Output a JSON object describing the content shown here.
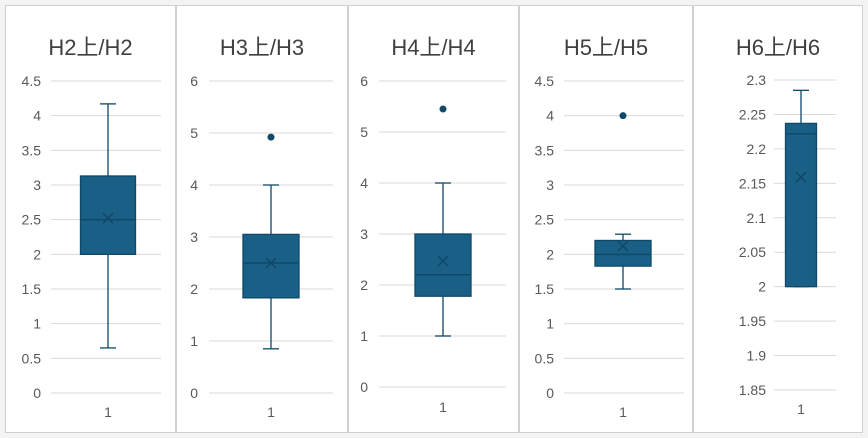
{
  "chart_data": [
    {
      "type": "boxplot",
      "title": "H2上/H2",
      "categories": [
        "1"
      ],
      "ylim": [
        0,
        4.5
      ],
      "yticks": [
        "0",
        "0.5",
        "1",
        "1.5",
        "2",
        "2.5",
        "3",
        "3.5",
        "4",
        "4.5"
      ],
      "box": {
        "min": 0.65,
        "q1": 2.0,
        "median": 2.5,
        "q3": 3.13,
        "max": 4.17,
        "mean": 2.52,
        "outliers": []
      },
      "grid": true
    },
    {
      "type": "boxplot",
      "title": "H3上/H3",
      "categories": [
        "1"
      ],
      "ylim": [
        0,
        6
      ],
      "yticks": [
        "0",
        "1",
        "2",
        "3",
        "4",
        "5",
        "6"
      ],
      "box": {
        "min": 0.85,
        "q1": 1.83,
        "median": 2.5,
        "q3": 3.05,
        "max": 4.0,
        "mean": 2.5,
        "outliers": [
          4.92
        ]
      },
      "grid": true
    },
    {
      "type": "boxplot",
      "title": "H4上/H4",
      "categories": [
        "1"
      ],
      "ylim": [
        0,
        6
      ],
      "yticks": [
        "0",
        "1",
        "2",
        "3",
        "4",
        "5",
        "6"
      ],
      "box": {
        "min": 1.0,
        "q1": 1.78,
        "median": 2.2,
        "q3": 3.0,
        "max": 4.0,
        "mean": 2.47,
        "outliers": [
          5.45
        ]
      },
      "grid": true
    },
    {
      "type": "boxplot",
      "title": "H5上/H5",
      "categories": [
        "1"
      ],
      "ylim": [
        0,
        4.5
      ],
      "yticks": [
        "0",
        "0.5",
        "1",
        "1.5",
        "2",
        "2.5",
        "3",
        "3.5",
        "4",
        "4.5"
      ],
      "box": {
        "min": 1.5,
        "q1": 1.83,
        "median": 2.0,
        "q3": 2.2,
        "max": 2.29,
        "mean": 2.12,
        "outliers": [
          4.0
        ]
      },
      "grid": true
    },
    {
      "type": "boxplot",
      "title": "H6上/H6",
      "categories": [
        "1"
      ],
      "ylim": [
        1.85,
        2.3
      ],
      "yticks": [
        "1.85",
        "1.9",
        "1.95",
        "2",
        "2.05",
        "2.1",
        "2.15",
        "2.2",
        "2.25",
        "2.3"
      ],
      "box": {
        "min": 2.0,
        "q1": 2.0,
        "median": 2.222,
        "q3": 2.237,
        "max": 2.285,
        "mean": 2.159,
        "outliers": []
      },
      "grid": true
    }
  ],
  "colors": {
    "box": "#1a5f85",
    "box_border": "#0f4868",
    "grid": "#d9d9d9",
    "text": "#595959",
    "title": "#404040"
  }
}
